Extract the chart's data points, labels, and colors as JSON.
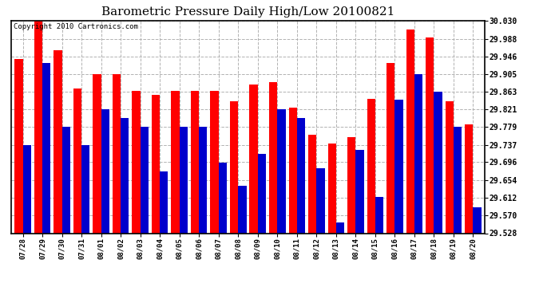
{
  "title": "Barometric Pressure Daily High/Low 20100821",
  "copyright": "Copyright 2010 Cartronics.com",
  "categories": [
    "07/28",
    "07/29",
    "07/30",
    "07/31",
    "08/01",
    "08/02",
    "08/03",
    "08/04",
    "08/05",
    "08/06",
    "08/07",
    "08/08",
    "08/09",
    "08/10",
    "08/11",
    "08/12",
    "08/13",
    "08/14",
    "08/15",
    "08/16",
    "08/17",
    "08/18",
    "08/19",
    "08/20"
  ],
  "highs": [
    29.94,
    30.03,
    29.96,
    29.87,
    29.905,
    29.905,
    29.865,
    29.855,
    29.865,
    29.865,
    29.865,
    29.84,
    29.88,
    29.885,
    29.825,
    29.76,
    29.74,
    29.755,
    29.845,
    29.93,
    30.01,
    29.99,
    29.84,
    29.785
  ],
  "lows": [
    29.737,
    29.93,
    29.779,
    29.737,
    29.821,
    29.8,
    29.779,
    29.675,
    29.779,
    29.779,
    29.695,
    29.64,
    29.716,
    29.821,
    29.8,
    29.682,
    29.554,
    29.725,
    29.613,
    29.843,
    29.905,
    29.863,
    29.779,
    29.59
  ],
  "high_color": "#FF0000",
  "low_color": "#0000CC",
  "ylim_min": 29.528,
  "ylim_max": 30.03,
  "yticks": [
    29.528,
    29.57,
    29.612,
    29.654,
    29.696,
    29.737,
    29.779,
    29.821,
    29.863,
    29.905,
    29.946,
    29.988,
    30.03
  ],
  "ytick_labels": [
    "29.528",
    "29.570",
    "29.612",
    "29.654",
    "29.696",
    "29.737",
    "29.779",
    "29.821",
    "29.863",
    "29.905",
    "29.946",
    "29.988",
    "30.030"
  ],
  "background_color": "#FFFFFF",
  "plot_bg_color": "#FFFFFF",
  "grid_color": "#AAAAAA",
  "bar_width": 0.42,
  "title_fontsize": 11,
  "copyright_fontsize": 6.5
}
